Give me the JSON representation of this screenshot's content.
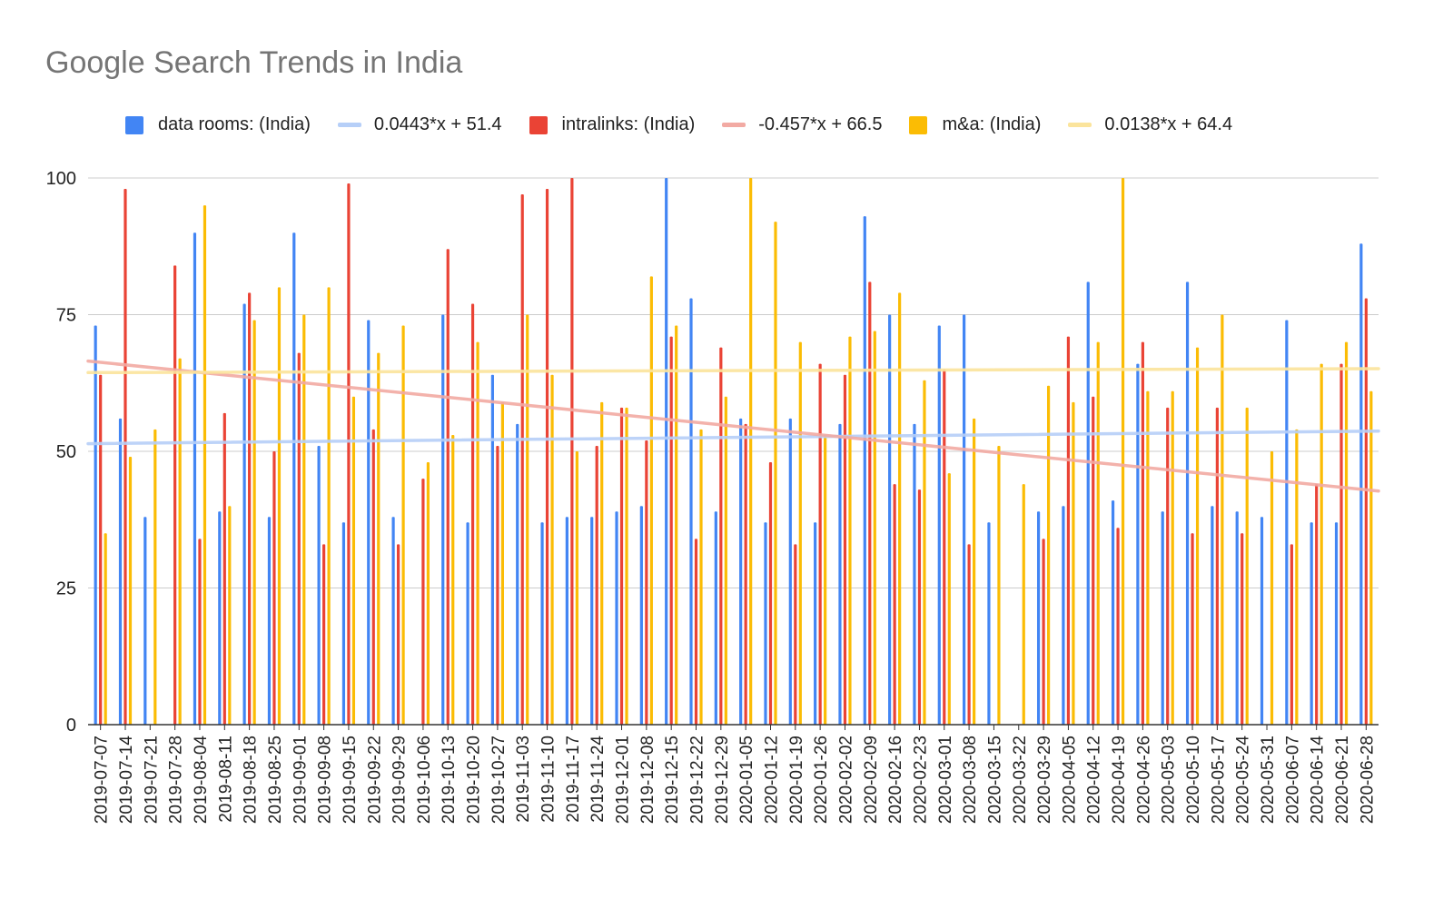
{
  "chart_data": {
    "type": "bar",
    "title": "Google Search Trends in India",
    "xlabel": "",
    "ylabel": "",
    "ylim": [
      0,
      100
    ],
    "yticks": [
      0,
      25,
      50,
      75,
      100
    ],
    "grid": true,
    "legend_position": "top",
    "categories": [
      "2019-07-07",
      "2019-07-14",
      "2019-07-21",
      "2019-07-28",
      "2019-08-04",
      "2019-08-11",
      "2019-08-18",
      "2019-08-25",
      "2019-09-01",
      "2019-09-08",
      "2019-09-15",
      "2019-09-22",
      "2019-09-29",
      "2019-10-06",
      "2019-10-13",
      "2019-10-20",
      "2019-10-27",
      "2019-11-03",
      "2019-11-10",
      "2019-11-17",
      "2019-11-24",
      "2019-12-01",
      "2019-12-08",
      "2019-12-15",
      "2019-12-22",
      "2019-12-29",
      "2020-01-05",
      "2020-01-12",
      "2020-01-19",
      "2020-01-26",
      "2020-02-02",
      "2020-02-09",
      "2020-02-16",
      "2020-02-23",
      "2020-03-01",
      "2020-03-08",
      "2020-03-15",
      "2020-03-22",
      "2020-03-29",
      "2020-04-05",
      "2020-04-12",
      "2020-04-19",
      "2020-04-26",
      "2020-05-03",
      "2020-05-10",
      "2020-05-17",
      "2020-05-24",
      "2020-05-31",
      "2020-06-07",
      "2020-06-14",
      "2020-06-21",
      "2020-06-28"
    ],
    "series": [
      {
        "name": "data rooms: (India)",
        "color": "#4285f4",
        "values": [
          73,
          56,
          38,
          0,
          90,
          39,
          77,
          38,
          90,
          51,
          37,
          74,
          38,
          0,
          75,
          37,
          64,
          55,
          37,
          38,
          38,
          39,
          40,
          100,
          78,
          39,
          56,
          37,
          56,
          37,
          55,
          93,
          75,
          55,
          73,
          75,
          37,
          0,
          39,
          40,
          81,
          41,
          66,
          39,
          81,
          40,
          39,
          38,
          74,
          37,
          37,
          88
        ]
      },
      {
        "name": "intralinks: (India)",
        "color": "#ea4335",
        "values": [
          64,
          98,
          0,
          84,
          34,
          57,
          79,
          50,
          68,
          33,
          99,
          54,
          33,
          45,
          87,
          77,
          51,
          97,
          98,
          100,
          51,
          58,
          52,
          71,
          34,
          69,
          55,
          48,
          33,
          66,
          64,
          81,
          44,
          43,
          65,
          33,
          0,
          0,
          34,
          71,
          60,
          36,
          70,
          58,
          35,
          58,
          35,
          0,
          33,
          44,
          66,
          78
        ]
      },
      {
        "name": "m&a: (India)",
        "color": "#fbbc04",
        "values": [
          35,
          49,
          54,
          67,
          95,
          40,
          74,
          80,
          75,
          80,
          60,
          68,
          73,
          48,
          53,
          70,
          59,
          75,
          64,
          50,
          59,
          58,
          82,
          73,
          54,
          60,
          100,
          92,
          70,
          53,
          71,
          72,
          79,
          63,
          46,
          56,
          51,
          44,
          62,
          59,
          70,
          100,
          61,
          61,
          69,
          75,
          58,
          50,
          54,
          66,
          70,
          61
        ]
      }
    ],
    "trendlines": [
      {
        "label": "0.0443*x + 51.4",
        "color": "#b6cff8",
        "slope": 0.0443,
        "intercept": 51.4
      },
      {
        "label": "-0.457*x + 66.5",
        "color": "#f2aaa3",
        "slope": -0.457,
        "intercept": 66.5
      },
      {
        "label": "0.0138*x + 64.4",
        "color": "#fbe49c",
        "slope": 0.0138,
        "intercept": 64.4
      }
    ]
  }
}
